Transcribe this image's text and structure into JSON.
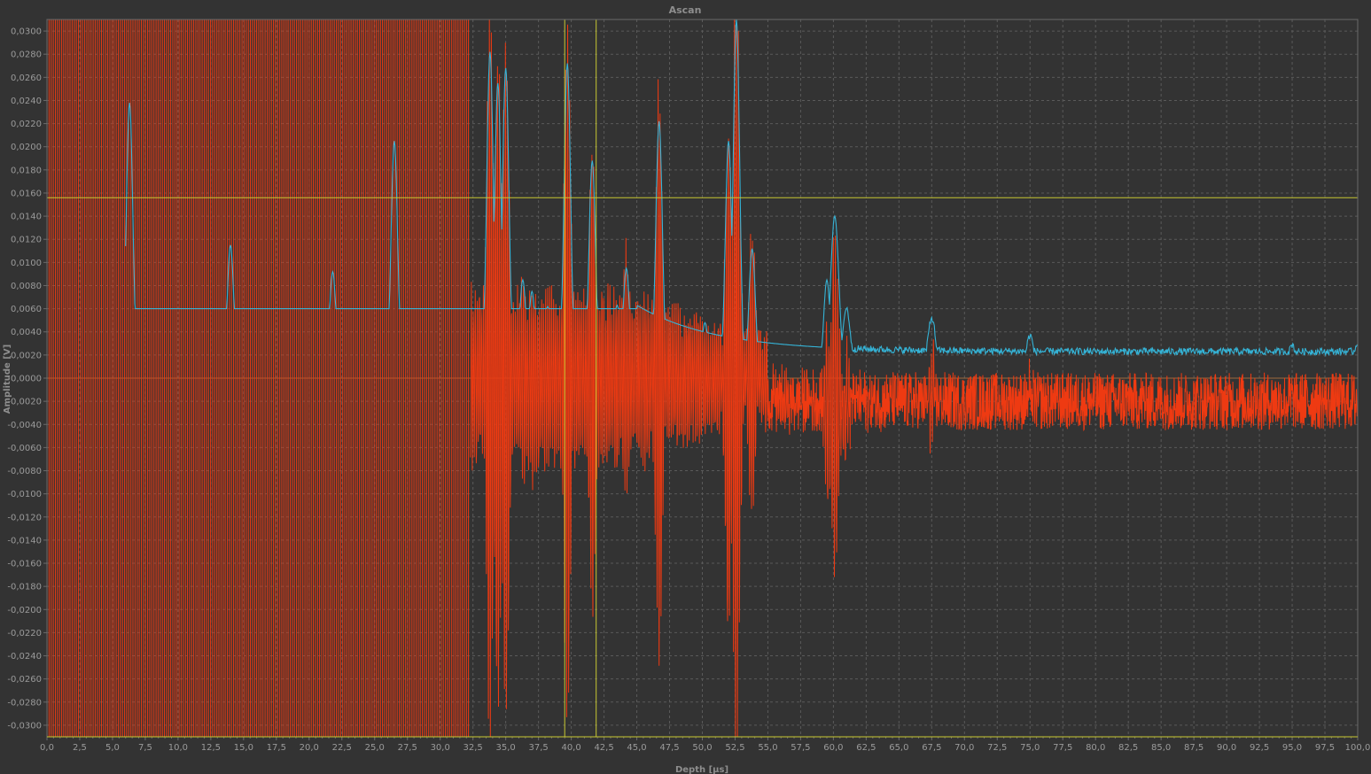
{
  "window": {
    "title": "Ascan"
  },
  "colors": {
    "background": "#333333",
    "grid": "#5a5a5a",
    "axis": "#6a6a6a",
    "zero_line": "#9c6a3e",
    "gate": "#c8c832",
    "series_rf": "#ee3a12",
    "series_envelope": "#35b3d6"
  },
  "chart_data": {
    "type": "line",
    "title": "Ascan",
    "xlabel": "Depth [µs]",
    "ylabel": "Amplitude [V]",
    "xlim": [
      0,
      100
    ],
    "ylim": [
      -0.031,
      0.031
    ],
    "grid": true,
    "x_ticks": [
      "0,0",
      "2,5",
      "5,0",
      "7,5",
      "10,0",
      "12,5",
      "15,0",
      "17,5",
      "20,0",
      "22,5",
      "25,0",
      "27,5",
      "30,0",
      "32,5",
      "35,0",
      "37,5",
      "40,0",
      "42,5",
      "45,0",
      "47,5",
      "50,0",
      "52,5",
      "55,0",
      "57,5",
      "60,0",
      "62,5",
      "65,0",
      "67,5",
      "70,0",
      "72,5",
      "75,0",
      "77,5",
      "80,0",
      "82,5",
      "85,0",
      "87,5",
      "90,0",
      "92,5",
      "95,0",
      "97,5",
      "100,0"
    ],
    "y_ticks": [
      "0,0300",
      "0,0280",
      "0,0260",
      "0,0240",
      "0,0220",
      "0,0200",
      "0,0180",
      "0,0160",
      "0,0140",
      "0,0120",
      "0,0100",
      "0,0080",
      "0,0060",
      "0,0040",
      "0,0020",
      "0,0000",
      "-0,0020",
      "-0,0040",
      "-0,0060",
      "-0,0080",
      "-0,0100",
      "-0,0120",
      "-0,0140",
      "-0,0160",
      "-0,0180",
      "-0,0200",
      "-0,0220",
      "-0,0240",
      "-0,0260",
      "-0,0280",
      "-0,0300"
    ],
    "gates": [
      {
        "type": "horizontal",
        "y": 0.0156
      },
      {
        "type": "vertical",
        "x": 39.5
      },
      {
        "type": "vertical",
        "x": 41.9
      }
    ],
    "series": [
      {
        "id": "envelope",
        "color": "#35b3d6",
        "peaks": [
          {
            "x": 6.3,
            "y": 0.0238
          },
          {
            "x": 7.0,
            "y": 0.0002
          },
          {
            "x": 14.0,
            "y": 0.0115
          },
          {
            "x": 21.8,
            "y": 0.0092
          },
          {
            "x": 26.5,
            "y": 0.0205
          },
          {
            "x": 29.0,
            "y": 0.0007
          },
          {
            "x": 33.8,
            "y": 0.0282
          },
          {
            "x": 34.4,
            "y": 0.0255
          },
          {
            "x": 35.0,
            "y": 0.0268
          },
          {
            "x": 36.3,
            "y": 0.0085
          },
          {
            "x": 37.0,
            "y": 0.0075
          },
          {
            "x": 38.2,
            "y": 0.0062
          },
          {
            "x": 39.7,
            "y": 0.0272
          },
          {
            "x": 41.0,
            "y": 0.0055
          },
          {
            "x": 41.6,
            "y": 0.0188
          },
          {
            "x": 42.8,
            "y": 0.0035
          },
          {
            "x": 43.5,
            "y": 0.0063
          },
          {
            "x": 44.2,
            "y": 0.0095
          },
          {
            "x": 45.2,
            "y": 0.0042
          },
          {
            "x": 46.7,
            "y": 0.0222
          },
          {
            "x": 48.0,
            "y": 0.0043
          },
          {
            "x": 50.2,
            "y": 0.0048
          },
          {
            "x": 52.0,
            "y": 0.0205
          },
          {
            "x": 52.6,
            "y": 0.031
          },
          {
            "x": 53.8,
            "y": 0.0112
          },
          {
            "x": 59.5,
            "y": 0.0085
          },
          {
            "x": 60.1,
            "y": 0.014
          },
          {
            "x": 61.0,
            "y": 0.006
          },
          {
            "x": 67.5,
            "y": 0.0052
          },
          {
            "x": 75.0,
            "y": 0.0037
          },
          {
            "x": 95.0,
            "y": 0.0029
          },
          {
            "x": 100.0,
            "y": 0.0031
          }
        ]
      },
      {
        "id": "rf",
        "color": "#ee3a12",
        "noise_level": -0.002,
        "noise_amplitude": 0.0025,
        "saturated_until": 32.3
      }
    ]
  }
}
